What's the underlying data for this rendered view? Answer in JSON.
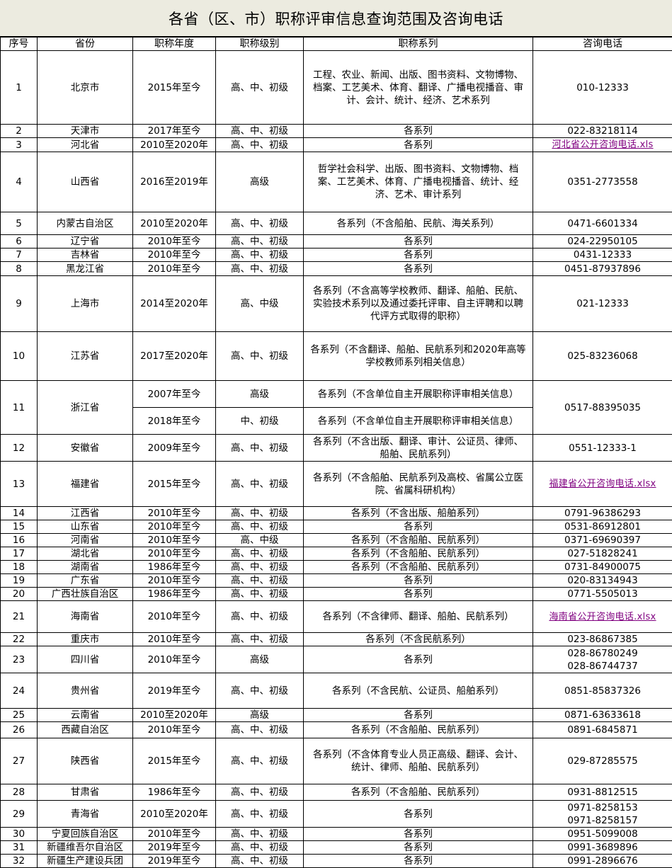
{
  "title": "各省（区、市）职称评审信息查询范围及咨询电话",
  "headers": [
    "序号",
    "省份",
    "职称年度",
    "职称级别",
    "职称系列",
    "咨询电话"
  ],
  "link_color": "#800080",
  "rows": [
    {
      "no": "1",
      "province": "北京市",
      "years": "2015年至今",
      "level": "高、中、初级",
      "series": "工程、农业、新闻、出版、图书资料、文物博物、档案、工艺美术、体育、翻译、广播电视播音、审计、会计、统计、经济、艺术系列",
      "phone": "010-12333"
    },
    {
      "no": "2",
      "province": "天津市",
      "years": "2017年至今",
      "level": "高、中、初级",
      "series": "各系列",
      "phone": "022-83218114"
    },
    {
      "no": "3",
      "province": "河北省",
      "years": "2010至2020年",
      "level": "高、中、初级",
      "series": "各系列",
      "link": "河北省公开咨询电话.xls"
    },
    {
      "no": "4",
      "province": "山西省",
      "years": "2016至2019年",
      "level": "高级",
      "series": "哲学社会科学、出版、图书资料、文物博物、档案、工艺美术、体育、广播电视播音、统计、经济、艺术、审计系列",
      "phone": "0351-2773558"
    },
    {
      "no": "5",
      "province": "内蒙古自治区",
      "years": "2010至2020年",
      "level": "高、中、初级",
      "series": "各系列（不含船舶、民航、海关系列）",
      "phone": "0471-6601334"
    },
    {
      "no": "6",
      "province": "辽宁省",
      "years": "2010年至今",
      "level": "高、中、初级",
      "series": "各系列",
      "phone": "024-22950105"
    },
    {
      "no": "7",
      "province": "吉林省",
      "years": "2010年至今",
      "level": "高、中、初级",
      "series": "各系列",
      "phone": "0431-12333"
    },
    {
      "no": "8",
      "province": "黑龙江省",
      "years": "2010年至今",
      "level": "高、中、初级",
      "series": "各系列",
      "phone": "0451-87937896"
    },
    {
      "no": "9",
      "province": "上海市",
      "years": "2014至2020年",
      "level": "高、中级",
      "series": "各系列（不含高等学校教师、翻译、船舶、民航、实验技术系列以及通过委托评审、自主评聘和以聘代评方式取得的职称）",
      "phone": "021-12333"
    },
    {
      "no": "10",
      "province": "江苏省",
      "years": "2017至2020年",
      "level": "高、中、初级",
      "series": "各系列（不含翻译、船舶、民航系列和2020年高等学校教师系列相关信息）",
      "phone": "025-83236068"
    },
    {
      "no": "11",
      "province": "浙江省",
      "phone": "0517-88395035",
      "sub": [
        {
          "years": "2007年至今",
          "level": "高级",
          "series": "各系列（不含单位自主开展职称评审相关信息）"
        },
        {
          "years": "2018年至今",
          "level": "中、初级",
          "series": "各系列（不含单位自主开展职称评审相关信息）"
        }
      ]
    },
    {
      "no": "12",
      "province": "安徽省",
      "years": "2009年至今",
      "level": "高、中、初级",
      "series": "各系列（不含出版、翻译、审计、公证员、律师、船舶、民航系列）",
      "phone": "0551-12333-1"
    },
    {
      "no": "13",
      "province": "福建省",
      "years": "2015年至今",
      "level": "高、中、初级",
      "series": "各系列（不含船舶、民航系列及高校、省属公立医院、省属科研机构）",
      "link": "福建省公开咨询电话.xlsx"
    },
    {
      "no": "14",
      "province": "江西省",
      "years": "2010年至今",
      "level": "高、中、初级",
      "series": "各系列（不含出版、船舶系列）",
      "phone": "0791-96386293"
    },
    {
      "no": "15",
      "province": "山东省",
      "years": "2010年至今",
      "level": "高、中、初级",
      "series": "各系列",
      "phone": "0531-86912801"
    },
    {
      "no": "16",
      "province": "河南省",
      "years": "2010年至今",
      "level": "高、中级",
      "series": "各系列（不含船舶、民航系列）",
      "phone": "0371-69690397"
    },
    {
      "no": "17",
      "province": "湖北省",
      "years": "2010年至今",
      "level": "高、中、初级",
      "series": "各系列（不含船舶、民航系列）",
      "phone": "027-51828241"
    },
    {
      "no": "18",
      "province": "湖南省",
      "years": "1986年至今",
      "level": "高、中、初级",
      "series": "各系列（不含船舶、民航系列）",
      "phone": "0731-84900075"
    },
    {
      "no": "19",
      "province": "广东省",
      "years": "2010年至今",
      "level": "高、中、初级",
      "series": "各系列",
      "phone": "020-83134943"
    },
    {
      "no": "20",
      "province": "广西壮族自治区",
      "years": "1986年至今",
      "level": "高、中、初级",
      "series": "各系列",
      "phone": "0771-5505013"
    },
    {
      "no": "21",
      "province": "海南省",
      "years": "2010年至今",
      "level": "高、中、初级",
      "series": "各系列（不含律师、翻译、船舶、民航系列）",
      "link": "海南省公开咨询电话.xlsx"
    },
    {
      "no": "22",
      "province": "重庆市",
      "years": "2010年至今",
      "level": "高、中、初级",
      "series": "各系列（不含民航系列）",
      "phone": "023-86867385"
    },
    {
      "no": "23",
      "province": "四川省",
      "years": "2010年至今",
      "level": "高级",
      "series": "各系列",
      "phone": "028-86780249\n028-86744737"
    },
    {
      "no": "24",
      "province": "贵州省",
      "years": "2019年至今",
      "level": "高、中、初级",
      "series": "各系列（不含民航、公证员、船舶系列）",
      "phone": "0851-85837326"
    },
    {
      "no": "25",
      "province": "云南省",
      "years": "2010至2020年",
      "level": "高级",
      "series": "各系列",
      "phone": "0871-63633618"
    },
    {
      "no": "26",
      "province": "西藏自治区",
      "years": "2010年至今",
      "level": "高、中、初级",
      "series": "各系列（不含船舶、民航系列）",
      "phone": "0891-6845871"
    },
    {
      "no": "27",
      "province": "陕西省",
      "years": "2015年至今",
      "level": "高、中、初级",
      "series": "各系列（不含体育专业人员正高级、翻译、会计、统计、律师、船舶、民航系列）",
      "phone": "029-87285575"
    },
    {
      "no": "28",
      "province": "甘肃省",
      "years": "1986年至今",
      "level": "高、中、初级",
      "series": "各系列（不含船舶、民航系列）",
      "phone": "0931-8812515"
    },
    {
      "no": "29",
      "province": "青海省",
      "years": "2010至2020年",
      "level": "高、中、初级",
      "series": "各系列",
      "phone": "0971-8258153\n0971-8258157"
    },
    {
      "no": "30",
      "province": "宁夏回族自治区",
      "years": "2010年至今",
      "level": "高、中、初级",
      "series": "各系列",
      "phone": "0951-5099008"
    },
    {
      "no": "31",
      "province": "新疆维吾尔自治区",
      "years": "2019年至今",
      "level": "高、中、初级",
      "series": "各系列",
      "phone": "0991-3689896"
    },
    {
      "no": "32",
      "province": "新疆生产建设兵团",
      "years": "2019年至今",
      "level": "高、中、初级",
      "series": "各系列",
      "phone": "0991-2896676"
    }
  ]
}
